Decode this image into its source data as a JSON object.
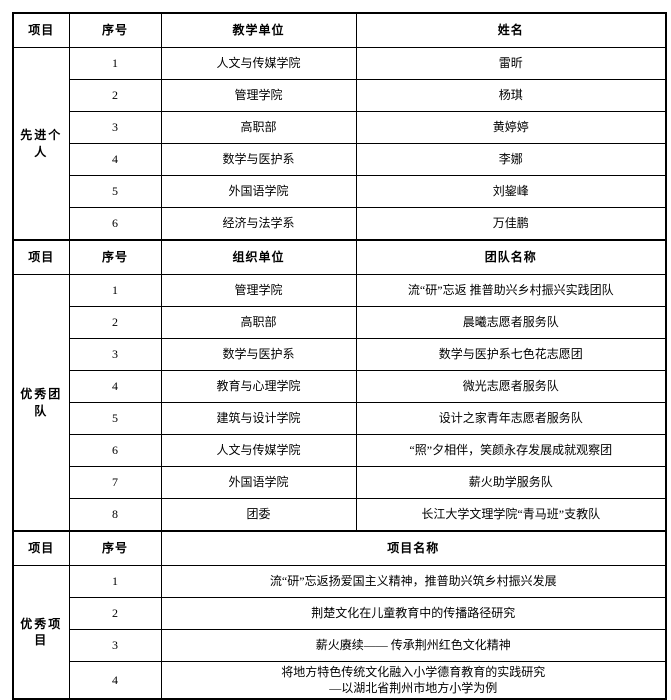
{
  "table": {
    "sections": [
      {
        "label": "先进个人",
        "headers": [
          "项目",
          "序号",
          "教学单位",
          "姓名"
        ],
        "rows": [
          {
            "no": "1",
            "unit": "人文与传媒学院",
            "name": "雷昕"
          },
          {
            "no": "2",
            "unit": "管理学院",
            "name": "杨琪"
          },
          {
            "no": "3",
            "unit": "高职部",
            "name": "黄婷婷"
          },
          {
            "no": "4",
            "unit": "数学与医护系",
            "name": "李娜"
          },
          {
            "no": "5",
            "unit": "外国语学院",
            "name": "刘鋆峰"
          },
          {
            "no": "6",
            "unit": "经济与法学系",
            "name": "万佳鹏"
          }
        ]
      },
      {
        "label": "优秀团队",
        "headers": [
          "项目",
          "序号",
          "组织单位",
          "团队名称"
        ],
        "rows": [
          {
            "no": "1",
            "unit": "管理学院",
            "name": "流“研”忘返 推普助兴乡村振兴实践团队"
          },
          {
            "no": "2",
            "unit": "高职部",
            "name": "晨曦志愿者服务队"
          },
          {
            "no": "3",
            "unit": "数学与医护系",
            "name": "数学与医护系七色花志愿团"
          },
          {
            "no": "4",
            "unit": "教育与心理学院",
            "name": "微光志愿者服务队"
          },
          {
            "no": "5",
            "unit": "建筑与设计学院",
            "name": "设计之家青年志愿者服务队"
          },
          {
            "no": "6",
            "unit": "人文与传媒学院",
            "name": "“照”夕相伴，笑颜永存发展成就观察团"
          },
          {
            "no": "7",
            "unit": "外国语学院",
            "name": "薪火助学服务队"
          },
          {
            "no": "8",
            "unit": "团委",
            "name": "长江大学文理学院“青马班”支教队"
          }
        ]
      },
      {
        "label": "优秀项目",
        "headers": [
          "项目",
          "序号",
          "项目名称"
        ],
        "rows": [
          {
            "no": "1",
            "name": "流“研”忘返扬爱国主义精神，推普助兴筑乡村振兴发展"
          },
          {
            "no": "2",
            "name": "荆楚文化在儿童教育中的传播路径研究"
          },
          {
            "no": "3",
            "name": "薪火赓续—— 传承荆州红色文化精神"
          },
          {
            "no": "4",
            "name": "将地方特色传统文化融入小学德育教育的实践研究\n—以湖北省荆州市地方小学为例"
          }
        ]
      }
    ]
  }
}
